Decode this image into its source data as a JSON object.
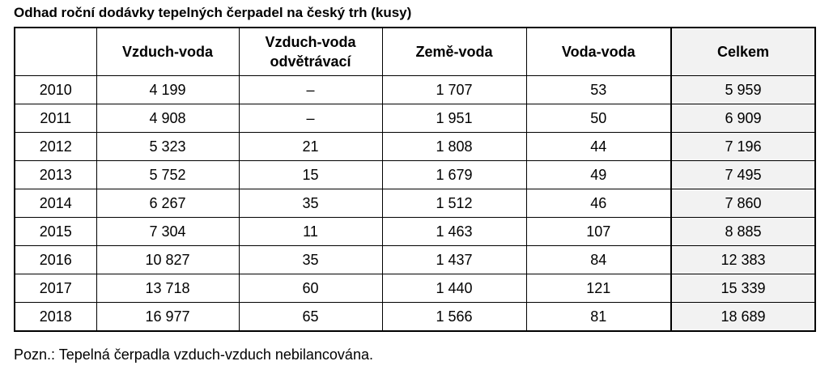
{
  "title": "Odhad roční dodávky tepelných čerpadel na český trh (kusy)",
  "table": {
    "headers": [
      "",
      "Vzduch-voda",
      "Vzduch-voda odvětrávací",
      "Země-voda",
      "Voda-voda",
      "Celkem"
    ],
    "rows": [
      [
        "2010",
        "4 199",
        "–",
        "1 707",
        "53",
        "5 959"
      ],
      [
        "2011",
        "4 908",
        "–",
        "1 951",
        "50",
        "6 909"
      ],
      [
        "2012",
        "5 323",
        "21",
        "1 808",
        "44",
        "7 196"
      ],
      [
        "2013",
        "5 752",
        "15",
        "1 679",
        "49",
        "7 495"
      ],
      [
        "2014",
        "6 267",
        "35",
        "1 512",
        "46",
        "7 860"
      ],
      [
        "2015",
        "7 304",
        "11",
        "1 463",
        "107",
        "8 885"
      ],
      [
        "2016",
        "10 827",
        "35",
        "1 437",
        "84",
        "12 383"
      ],
      [
        "2017",
        "13 718",
        "60",
        "1 440",
        "121",
        "15 339"
      ],
      [
        "2018",
        "16 977",
        "65",
        "1 566",
        "81",
        "18 689"
      ]
    ]
  },
  "note": "Pozn.: Tepelná čerpadla vzduch-vzduch nebilancována."
}
